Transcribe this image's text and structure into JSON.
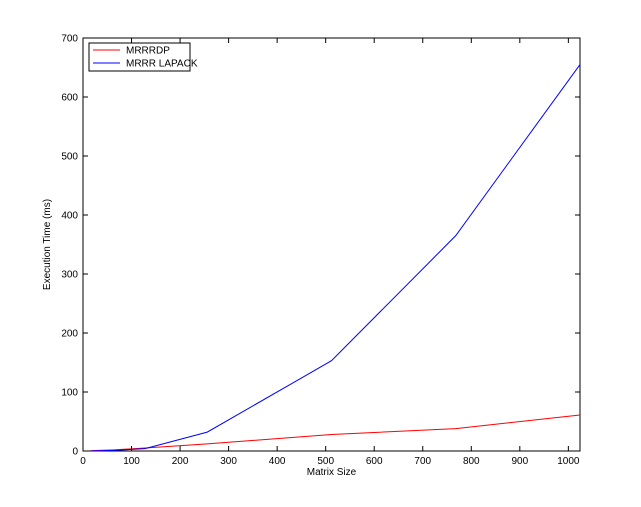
{
  "chart_data": {
    "type": "line",
    "title": "",
    "xlabel": "Matrix Size",
    "ylabel": "Execution Time (ms)",
    "xlim": [
      0,
      1024
    ],
    "ylim": [
      0,
      700
    ],
    "xticks": [
      0,
      100,
      200,
      300,
      400,
      500,
      600,
      700,
      800,
      900,
      1000
    ],
    "yticks": [
      0,
      100,
      200,
      300,
      400,
      500,
      600,
      700
    ],
    "grid": false,
    "legend_position": "top-left",
    "series": [
      {
        "name": "MRRRDP",
        "color": "#ff0000",
        "x": [
          16,
          32,
          64,
          128,
          256,
          512,
          768,
          1024
        ],
        "y": [
          0.5,
          1,
          2,
          5,
          12,
          28,
          38,
          61
        ]
      },
      {
        "name": "MRRR LAPACK",
        "color": "#0000ff",
        "x": [
          16,
          32,
          64,
          128,
          256,
          512,
          768,
          1024
        ],
        "y": [
          0.2,
          0.5,
          1,
          4,
          32,
          153,
          365,
          655
        ]
      }
    ]
  }
}
